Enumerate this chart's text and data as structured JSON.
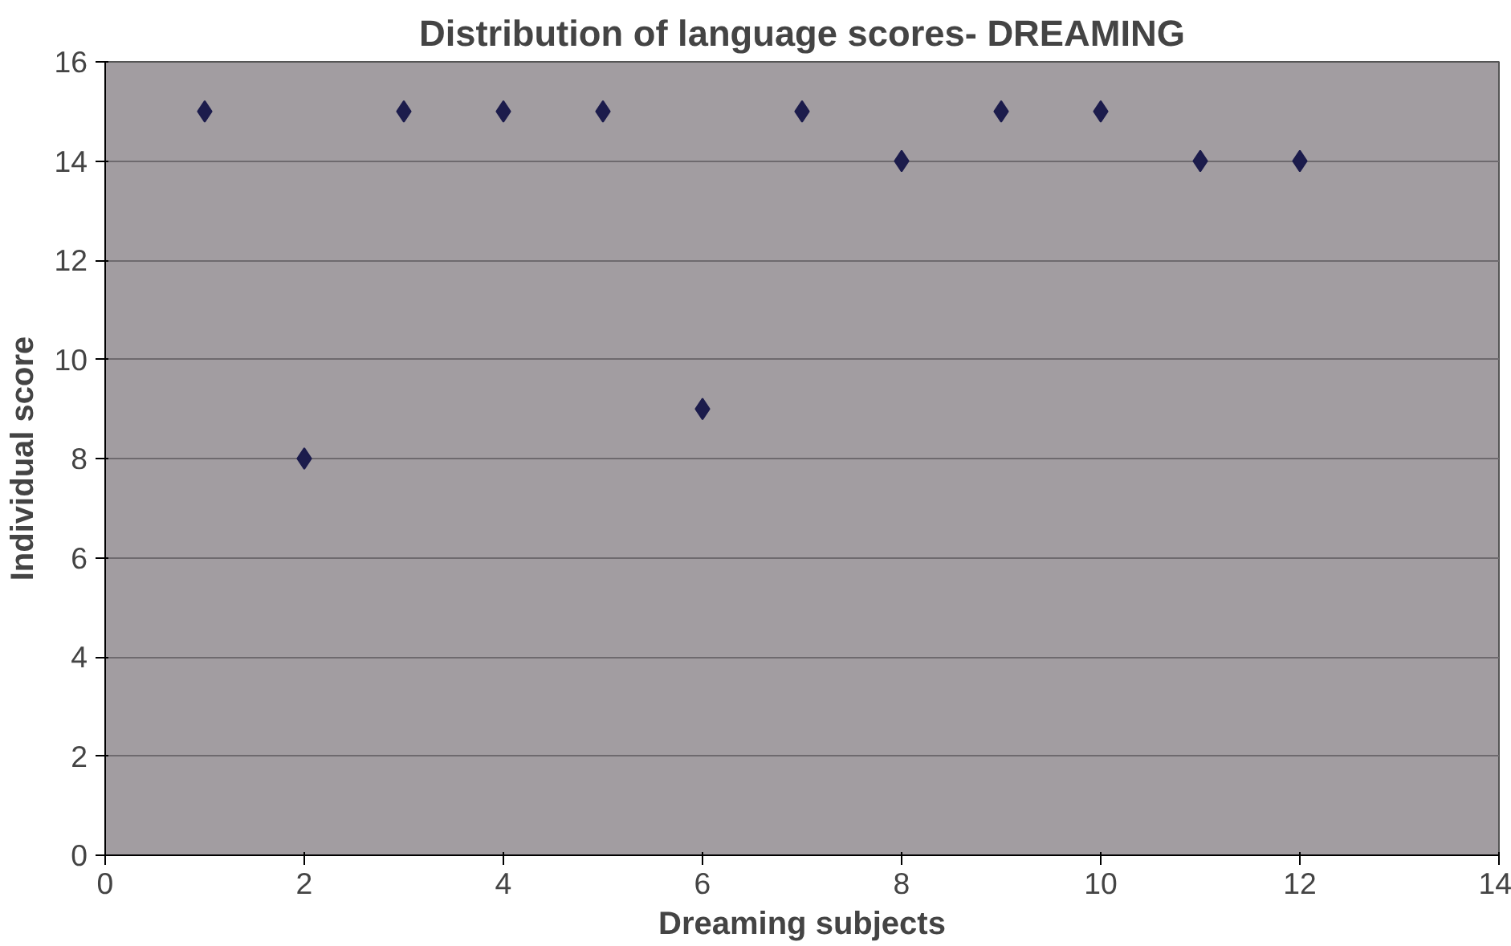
{
  "chart_data": {
    "type": "scatter",
    "title": "Distribution of language scores- DREAMING",
    "xlabel": "Dreaming subjects",
    "ylabel": "Individual score",
    "x": [
      1,
      2,
      3,
      4,
      5,
      6,
      7,
      8,
      9,
      10,
      11,
      12
    ],
    "series": [
      {
        "color": "#1c1c4c",
        "values": [
          15,
          8,
          15,
          15,
          15,
          9,
          15,
          14,
          15,
          15,
          14,
          14
        ]
      }
    ],
    "xlim": [
      0,
      14
    ],
    "xticks": [
      0,
      2,
      4,
      6,
      8,
      10,
      12,
      14
    ],
    "ylim": [
      0,
      16
    ],
    "yticks": [
      0,
      2,
      4,
      6,
      8,
      10,
      12,
      14,
      16
    ],
    "grid": "y",
    "marker": "diamond"
  }
}
